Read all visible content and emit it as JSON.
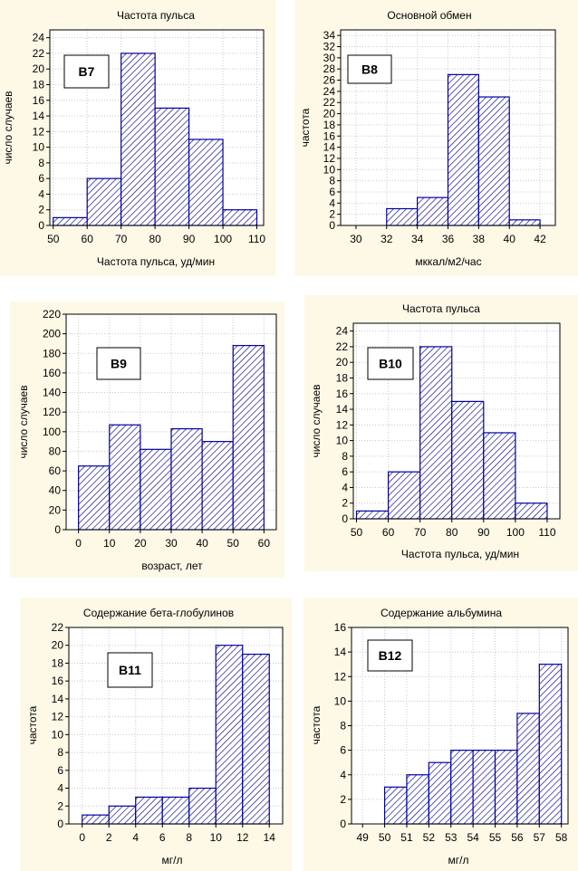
{
  "colors": {
    "panel_bg": "#fdf9e6",
    "bar_stroke": "#0000a0",
    "hatch": "#0000a0",
    "grid": "#c8c8c8"
  },
  "chart_data": [
    {
      "id": "b7",
      "type": "bar",
      "label": "B7",
      "title": "Частота пульса",
      "xlabel": "Частота пульса, уд/мин",
      "ylabel": "число случаев",
      "bin_edges": [
        50,
        60,
        70,
        80,
        90,
        100,
        110
      ],
      "values": [
        1,
        6,
        22,
        15,
        11,
        2
      ],
      "xticks": [
        50,
        60,
        70,
        80,
        90,
        100,
        110
      ],
      "xlim": [
        49,
        112
      ],
      "ylim": [
        0,
        25
      ],
      "yticks": [
        0,
        2,
        4,
        6,
        8,
        10,
        12,
        14,
        16,
        18,
        20,
        22,
        24
      ]
    },
    {
      "id": "b8",
      "type": "bar",
      "label": "B8",
      "title": "Основной обмен",
      "xlabel": "мккал/м2/час",
      "ylabel": "частота",
      "bin_edges": [
        30,
        32,
        34,
        36,
        38,
        40,
        42
      ],
      "values": [
        0,
        3,
        5,
        27,
        23,
        1
      ],
      "xticks": [
        30,
        32,
        34,
        36,
        38,
        40,
        42
      ],
      "xlim": [
        29,
        43
      ],
      "ylim": [
        0,
        35
      ],
      "yticks": [
        0,
        2,
        4,
        6,
        8,
        10,
        12,
        14,
        16,
        18,
        20,
        22,
        24,
        26,
        28,
        30,
        32,
        34
      ]
    },
    {
      "id": "b9",
      "type": "bar",
      "label": "B9",
      "title": "",
      "xlabel": "возраст, лет",
      "ylabel": "число случаев",
      "bin_edges": [
        0,
        10,
        20,
        30,
        40,
        50,
        60
      ],
      "values": [
        65,
        107,
        82,
        103,
        90,
        188
      ],
      "xticks": [
        0,
        10,
        20,
        30,
        40,
        50,
        60
      ],
      "xlim": [
        -4,
        64
      ],
      "ylim": [
        0,
        220
      ],
      "yticks": [
        0,
        20,
        40,
        60,
        80,
        100,
        120,
        140,
        160,
        180,
        200,
        220
      ]
    },
    {
      "id": "b10",
      "type": "bar",
      "label": "B10",
      "title": "Частота пульса",
      "xlabel": "Частота пульса, уд/мин",
      "ylabel": "число случаев",
      "bin_edges": [
        50,
        60,
        70,
        80,
        90,
        100,
        110
      ],
      "values": [
        1,
        6,
        22,
        15,
        11,
        2
      ],
      "xticks": [
        50,
        60,
        70,
        80,
        90,
        100,
        110
      ],
      "xlim": [
        49,
        114
      ],
      "ylim": [
        0,
        25
      ],
      "yticks": [
        0,
        2,
        4,
        6,
        8,
        10,
        12,
        14,
        16,
        18,
        20,
        22,
        24
      ]
    },
    {
      "id": "b11",
      "type": "bar",
      "label": "B11",
      "title": "Содержание бета-глобулинов",
      "xlabel": "мг/л",
      "ylabel": "частота",
      "bin_edges": [
        0,
        2,
        4,
        6,
        8,
        10,
        12,
        14
      ],
      "values": [
        1,
        2,
        3,
        3,
        4,
        20,
        19
      ],
      "xticks": [
        0,
        2,
        4,
        6,
        8,
        10,
        12,
        14
      ],
      "xlim": [
        -1,
        15
      ],
      "ylim": [
        0,
        22
      ],
      "yticks": [
        0,
        2,
        4,
        6,
        8,
        10,
        12,
        14,
        16,
        18,
        20,
        22
      ]
    },
    {
      "id": "b12",
      "type": "bar",
      "label": "B12",
      "title": "Содержание альбумина",
      "xlabel": "мг/л",
      "ylabel": "частота",
      "bin_edges": [
        49,
        50,
        51,
        52,
        53,
        54,
        55,
        56,
        57,
        58
      ],
      "values": [
        0,
        3,
        4,
        5,
        6,
        6,
        6,
        9,
        13
      ],
      "xticks": [
        49,
        50,
        51,
        52,
        53,
        54,
        55,
        56,
        57,
        58
      ],
      "xlim": [
        48.5,
        58.3
      ],
      "ylim": [
        0,
        16
      ],
      "yticks": [
        0,
        2,
        4,
        6,
        8,
        10,
        12,
        14,
        16
      ]
    }
  ]
}
